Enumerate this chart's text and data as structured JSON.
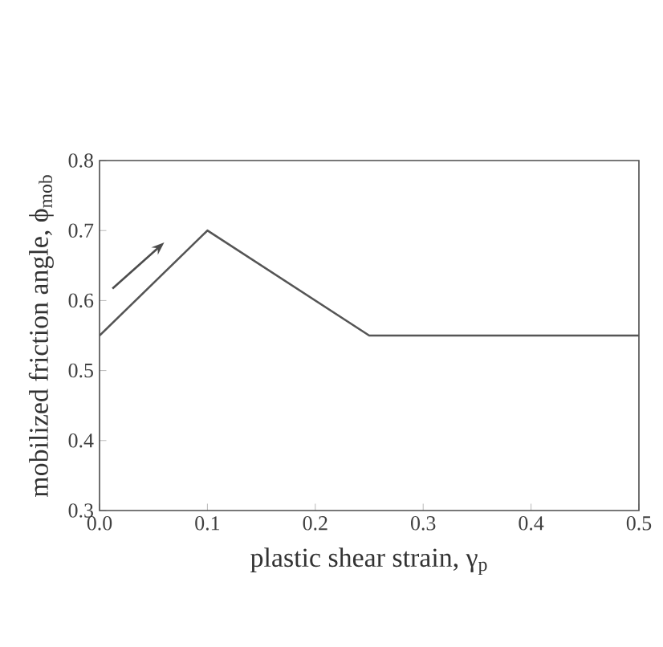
{
  "chart_data": {
    "type": "line",
    "x": [
      0,
      0.1,
      0.25,
      0.5
    ],
    "series": [
      {
        "color": "#555555",
        "values": [
          0.55,
          0.7,
          0.55,
          0.55
        ]
      }
    ],
    "xlabel": "plastic shear strain, γ$_{p}$",
    "ylabel": "mobilized friction angle, ϕ$_{mob}$",
    "xlim": [
      0,
      0.5
    ],
    "ylim": [
      0.3,
      0.8
    ],
    "xticks": [
      {
        "value": 0,
        "label": "0.0"
      },
      0.1,
      0.2,
      0.3,
      0.4,
      0.5
    ],
    "yticks": [
      0.3,
      0.4,
      0.5,
      0.6,
      0.7,
      0.8
    ],
    "marker": "none",
    "line_style": "solid"
  }
}
